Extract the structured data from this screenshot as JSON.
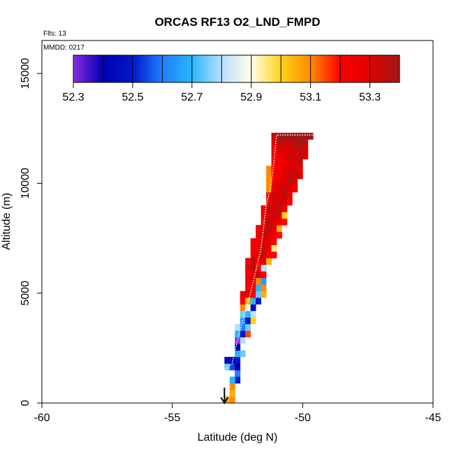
{
  "chart_data": {
    "type": "heatmap",
    "title": "ORCAS RF13 O2_LND_FMPD",
    "annotations": {
      "flights": "Flts: 13",
      "date": "MMDD: 0217"
    },
    "xlabel": "Latitude (deg N)",
    "ylabel": "Altitude (m)",
    "xlim": [
      -60,
      -45
    ],
    "ylim": [
      0,
      16500
    ],
    "x_ticks": [
      -60,
      -55,
      -50,
      -45
    ],
    "y_ticks": [
      0,
      5000,
      10000,
      15000
    ],
    "grid": false,
    "colorbar": {
      "min": 52.3,
      "max": 53.4,
      "tick_values": [
        52.3,
        52.5,
        52.7,
        52.9,
        53.1,
        53.3
      ],
      "tick_labels": [
        "52.3",
        "52.5",
        "52.7",
        "52.9",
        "53.1",
        "53.3"
      ],
      "placement": "top-inside",
      "stops": [
        {
          "v": 52.3,
          "c": "#8a2be2"
        },
        {
          "v": 52.4,
          "c": "#0000b0"
        },
        {
          "v": 52.5,
          "c": "#0018c8"
        },
        {
          "v": 52.6,
          "c": "#1f7fff"
        },
        {
          "v": 52.7,
          "c": "#29b6ff"
        },
        {
          "v": 52.8,
          "c": "#b9dfff"
        },
        {
          "v": 52.9,
          "c": "#ffffe6"
        },
        {
          "v": 53.0,
          "c": "#ffd21a"
        },
        {
          "v": 53.1,
          "c": "#ff8c00"
        },
        {
          "v": 53.2,
          "c": "#ff0000"
        },
        {
          "v": 53.3,
          "c": "#e00000"
        },
        {
          "v": 53.4,
          "c": "#a01818"
        }
      ]
    },
    "cells": [
      [
        -53.0,
        0,
        53.05
      ],
      [
        -52.8,
        0,
        53.1
      ],
      [
        -52.8,
        300,
        53.05
      ],
      [
        -52.8,
        600,
        53.1
      ],
      [
        -52.6,
        900,
        52.5
      ],
      [
        -52.8,
        900,
        52.7
      ],
      [
        -52.6,
        1200,
        52.6
      ],
      [
        -53.0,
        1500,
        52.75
      ],
      [
        -52.8,
        1500,
        52.55
      ],
      [
        -52.6,
        1500,
        52.4
      ],
      [
        -53.0,
        1800,
        52.45
      ],
      [
        -52.8,
        1800,
        52.45
      ],
      [
        -52.6,
        1800,
        52.5
      ],
      [
        -52.6,
        2100,
        52.7
      ],
      [
        -52.4,
        2100,
        52.75
      ],
      [
        -52.6,
        2400,
        52.4
      ],
      [
        -52.6,
        2700,
        52.3
      ],
      [
        -52.4,
        2700,
        52.8
      ],
      [
        -52.6,
        3000,
        52.7
      ],
      [
        -52.4,
        3000,
        52.5
      ],
      [
        -52.2,
        3000,
        53.15
      ],
      [
        -52.6,
        3300,
        52.8
      ],
      [
        -52.4,
        3300,
        52.6
      ],
      [
        -52.2,
        3300,
        52.75
      ],
      [
        -52.4,
        3600,
        52.65
      ],
      [
        -52.2,
        3600,
        52.5
      ],
      [
        -52.0,
        3600,
        53.0
      ],
      [
        -52.4,
        3900,
        52.75
      ],
      [
        -52.2,
        3900,
        52.7
      ],
      [
        -52.0,
        3900,
        52.8
      ],
      [
        -52.4,
        4200,
        53.1
      ],
      [
        -52.2,
        4200,
        52.9
      ],
      [
        -52.0,
        4200,
        52.45
      ],
      [
        -52.4,
        4500,
        53.2
      ],
      [
        -52.2,
        4500,
        53.05
      ],
      [
        -52.0,
        4500,
        52.7
      ],
      [
        -51.8,
        4500,
        52.5
      ],
      [
        -52.4,
        4800,
        53.25
      ],
      [
        -52.2,
        4800,
        53.3
      ],
      [
        -52.0,
        4800,
        53.2
      ],
      [
        -51.8,
        4800,
        52.75
      ],
      [
        -51.6,
        4800,
        53.05
      ],
      [
        -52.2,
        5100,
        53.25
      ],
      [
        -52.0,
        5100,
        53.2
      ],
      [
        -51.8,
        5100,
        52.7
      ],
      [
        -51.6,
        5100,
        53.1
      ],
      [
        -52.2,
        5400,
        53.25
      ],
      [
        -52.0,
        5400,
        53.3
      ],
      [
        -51.8,
        5400,
        53.1
      ],
      [
        -51.6,
        5400,
        52.65
      ],
      [
        -52.2,
        5700,
        53.25
      ],
      [
        -52.0,
        5700,
        53.3
      ],
      [
        -51.8,
        5700,
        53.35
      ],
      [
        -51.6,
        5700,
        53.2
      ],
      [
        -52.2,
        6000,
        53.25
      ],
      [
        -52.0,
        6000,
        53.35
      ],
      [
        -51.8,
        6000,
        53.2
      ],
      [
        -51.6,
        6000,
        52.8
      ],
      [
        -52.2,
        6300,
        53.25
      ],
      [
        -52.0,
        6300,
        53.35
      ],
      [
        -51.8,
        6300,
        53.25
      ],
      [
        -51.6,
        6300,
        53.3
      ],
      [
        -51.4,
        6300,
        53.05
      ],
      [
        -52.0,
        6600,
        53.25
      ],
      [
        -51.8,
        6600,
        53.3
      ],
      [
        -51.6,
        6600,
        53.35
      ],
      [
        -51.4,
        6600,
        53.2
      ],
      [
        -51.2,
        6600,
        53.2
      ],
      [
        -52.0,
        6900,
        53.25
      ],
      [
        -51.8,
        6900,
        53.3
      ],
      [
        -51.6,
        6900,
        53.35
      ],
      [
        -51.4,
        6900,
        53.25
      ],
      [
        -51.2,
        6900,
        52.95
      ],
      [
        -52.0,
        7200,
        53.25
      ],
      [
        -51.8,
        7200,
        53.25
      ],
      [
        -51.6,
        7200,
        53.3
      ],
      [
        -51.4,
        7200,
        53.3
      ],
      [
        -51.2,
        7200,
        53.2
      ],
      [
        -51.8,
        7500,
        53.25
      ],
      [
        -51.6,
        7500,
        53.35
      ],
      [
        -51.4,
        7500,
        53.3
      ],
      [
        -51.2,
        7500,
        53.25
      ],
      [
        -51.0,
        7500,
        53.2
      ],
      [
        -51.8,
        7800,
        53.25
      ],
      [
        -51.6,
        7800,
        53.3
      ],
      [
        -51.4,
        7800,
        53.35
      ],
      [
        -51.2,
        7800,
        53.3
      ],
      [
        -51.0,
        7800,
        53.05
      ],
      [
        -51.6,
        8100,
        53.25
      ],
      [
        -51.4,
        8100,
        53.35
      ],
      [
        -51.2,
        8100,
        53.3
      ],
      [
        -51.0,
        8100,
        53.25
      ],
      [
        -50.8,
        8100,
        53.2
      ],
      [
        -51.6,
        8400,
        53.25
      ],
      [
        -51.4,
        8400,
        53.3
      ],
      [
        -51.2,
        8400,
        53.35
      ],
      [
        -51.0,
        8400,
        53.3
      ],
      [
        -50.8,
        8400,
        53.0
      ],
      [
        -51.6,
        8700,
        53.25
      ],
      [
        -51.4,
        8700,
        53.35
      ],
      [
        -51.2,
        8700,
        53.3
      ],
      [
        -51.0,
        8700,
        53.35
      ],
      [
        -50.8,
        8700,
        53.25
      ],
      [
        -51.4,
        9000,
        53.25
      ],
      [
        -51.2,
        9000,
        53.3
      ],
      [
        -51.0,
        9000,
        53.35
      ],
      [
        -50.8,
        9000,
        53.3
      ],
      [
        -50.6,
        9000,
        53.2
      ],
      [
        -51.4,
        9300,
        53.25
      ],
      [
        -51.2,
        9300,
        53.35
      ],
      [
        -51.0,
        9300,
        53.3
      ],
      [
        -50.8,
        9300,
        53.35
      ],
      [
        -50.6,
        9300,
        53.25
      ],
      [
        -51.4,
        9600,
        53.1
      ],
      [
        -51.2,
        9600,
        53.25
      ],
      [
        -51.0,
        9600,
        53.3
      ],
      [
        -50.8,
        9600,
        53.35
      ],
      [
        -50.6,
        9600,
        53.3
      ],
      [
        -50.4,
        9600,
        53.25
      ],
      [
        -51.4,
        9900,
        53.1
      ],
      [
        -51.2,
        9900,
        53.25
      ],
      [
        -51.0,
        9900,
        53.3
      ],
      [
        -50.8,
        9900,
        53.3
      ],
      [
        -50.6,
        9900,
        53.35
      ],
      [
        -50.4,
        9900,
        53.3
      ],
      [
        -51.4,
        10200,
        53.1
      ],
      [
        -51.2,
        10200,
        53.2
      ],
      [
        -51.0,
        10200,
        53.25
      ],
      [
        -50.8,
        10200,
        53.3
      ],
      [
        -50.6,
        10200,
        53.35
      ],
      [
        -50.4,
        10200,
        53.35
      ],
      [
        -50.2,
        10200,
        53.3
      ],
      [
        -51.4,
        10500,
        53.1
      ],
      [
        -51.2,
        10500,
        53.2
      ],
      [
        -51.0,
        10500,
        53.25
      ],
      [
        -50.8,
        10500,
        53.3
      ],
      [
        -50.6,
        10500,
        53.3
      ],
      [
        -50.4,
        10500,
        53.35
      ],
      [
        -50.2,
        10500,
        53.25
      ],
      [
        -51.2,
        10800,
        53.2
      ],
      [
        -51.0,
        10800,
        53.25
      ],
      [
        -50.8,
        10800,
        53.25
      ],
      [
        -50.6,
        10800,
        53.3
      ],
      [
        -50.4,
        10800,
        53.3
      ],
      [
        -50.2,
        10800,
        53.35
      ],
      [
        -51.2,
        11100,
        53.25
      ],
      [
        -51.0,
        11100,
        53.25
      ],
      [
        -50.8,
        11100,
        53.3
      ],
      [
        -50.6,
        11100,
        53.35
      ],
      [
        -50.4,
        11100,
        53.3
      ],
      [
        -50.2,
        11100,
        53.35
      ],
      [
        -50.0,
        11100,
        53.3
      ],
      [
        -51.2,
        11400,
        53.25
      ],
      [
        -51.0,
        11400,
        53.3
      ],
      [
        -50.8,
        11400,
        53.3
      ],
      [
        -50.6,
        11400,
        53.3
      ],
      [
        -50.4,
        11400,
        53.35
      ],
      [
        -50.2,
        11400,
        53.35
      ],
      [
        -50.0,
        11400,
        53.3
      ],
      [
        -51.2,
        11700,
        53.3
      ],
      [
        -51.0,
        11700,
        53.35
      ],
      [
        -50.8,
        11700,
        53.35
      ],
      [
        -50.6,
        11700,
        53.35
      ],
      [
        -50.4,
        11700,
        53.35
      ],
      [
        -50.2,
        11700,
        53.4
      ],
      [
        -50.0,
        11700,
        53.35
      ],
      [
        -51.2,
        12000,
        53.35
      ],
      [
        -51.0,
        12000,
        53.4
      ],
      [
        -50.8,
        12000,
        53.4
      ],
      [
        -50.6,
        12000,
        53.4
      ],
      [
        -50.4,
        12000,
        53.4
      ],
      [
        -50.2,
        12000,
        53.4
      ],
      [
        -50.0,
        12000,
        53.4
      ],
      [
        -49.8,
        12000,
        53.4
      ]
    ],
    "cell_size": {
      "dlat": 0.2,
      "dalt": 300
    },
    "flight_track": [
      [
        -53.0,
        50
      ],
      [
        -53.0,
        1500
      ],
      [
        -52.7,
        1800
      ],
      [
        -52.6,
        2400
      ],
      [
        -52.4,
        3300
      ],
      [
        -52.2,
        4200
      ],
      [
        -52.0,
        5000
      ],
      [
        -51.8,
        6000
      ],
      [
        -51.6,
        7000
      ],
      [
        -51.5,
        8000
      ],
      [
        -51.4,
        9000
      ],
      [
        -51.2,
        10000
      ],
      [
        -51.1,
        11000
      ],
      [
        -51.0,
        12200
      ],
      [
        -49.6,
        12200
      ]
    ],
    "track_color": "#ffffff",
    "arrow": {
      "lat": -53.0,
      "alt_from": 700,
      "alt_to": 0,
      "color": "#000000"
    }
  }
}
